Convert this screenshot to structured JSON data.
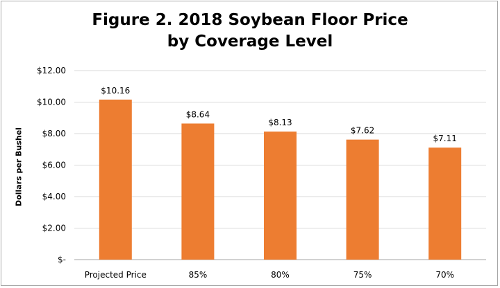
{
  "chart_data": {
    "type": "bar",
    "title": "Figure 2.  2018 Soybean Floor Price\nby Coverage Level",
    "xlabel": "",
    "ylabel": "Dollars per Bushel",
    "categories": [
      "Projected Price",
      "85%",
      "80%",
      "75%",
      "70%"
    ],
    "values": [
      10.16,
      8.64,
      8.13,
      7.62,
      7.11
    ],
    "data_labels": [
      "$10.16",
      "$8.64",
      "$8.13",
      "$7.62",
      "$7.11"
    ],
    "yticks": [
      0,
      2,
      4,
      6,
      8,
      10,
      12
    ],
    "ytick_labels": [
      "$-",
      "$2.00",
      "$4.00",
      "$6.00",
      "$8.00",
      "$10.00",
      "$12.00"
    ],
    "ylim": [
      0,
      12
    ],
    "grid": true,
    "legend": "none",
    "bar_color": "#ed7d31",
    "grid_color": "#d9d9d9"
  }
}
